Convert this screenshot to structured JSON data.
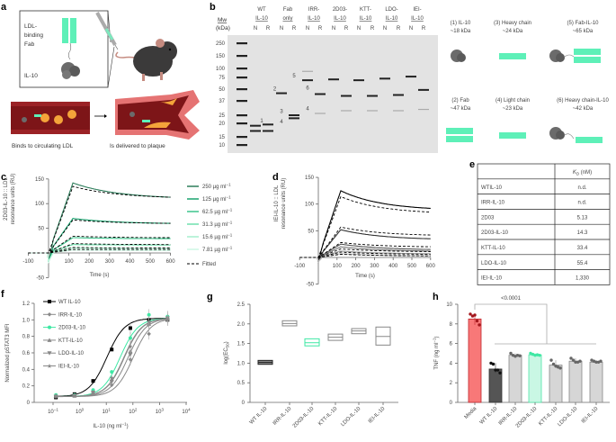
{
  "panel_letters": {
    "a": "a",
    "b": "b",
    "c": "c",
    "d": "d",
    "e": "e",
    "f": "f",
    "g": "g",
    "h": "h"
  },
  "panel_a": {
    "fab_label": [
      "LDL-",
      "binding",
      "Fab"
    ],
    "il10_label": "IL-10",
    "caption_left": "Binds to circulating LDL",
    "caption_right": "Is delivered to plaque",
    "colors": {
      "fab": "#5ef0b8",
      "vessel": "#9b2226",
      "ldl": "#f4a43a",
      "il10": "#6b6b6b"
    }
  },
  "panel_b": {
    "mw_label": "Mw",
    "mw_unit": "(kDa)",
    "ladder": [
      250,
      150,
      100,
      75,
      50,
      37,
      25,
      20,
      15,
      10
    ],
    "lane_groups": [
      {
        "line1": "WT",
        "line2": "IL-10"
      },
      {
        "line1": "Fab",
        "line2": "only"
      },
      {
        "line1": "IRR-",
        "line2": "IL-10"
      },
      {
        "line1": "2D03-",
        "line2": "IL-10"
      },
      {
        "line1": "KTT-",
        "line2": "IL-10"
      },
      {
        "line1": "LDO-",
        "line2": "IL-10"
      },
      {
        "line1": "IEI-",
        "line2": "IL-10"
      }
    ],
    "lane_sub": [
      "N",
      "R"
    ],
    "bands_kda": [
      [
        19,
        17
      ],
      [
        19.5,
        17
      ],
      [
        45
      ],
      [
        25,
        23
      ],
      [
        68,
        90
      ],
      [
        44,
        26
      ],
      [
        70
      ],
      [
        42,
        28
      ],
      [
        68
      ],
      [
        42,
        28
      ],
      [
        72
      ],
      [
        43,
        28
      ],
      [
        77
      ],
      [
        49,
        29
      ]
    ],
    "band_numbers": [
      {
        "text": "1",
        "lane": 1.5,
        "kda": 21.5
      },
      {
        "text": "2",
        "lane": 2.5,
        "kda": 51
      },
      {
        "text": "3",
        "lane": 3,
        "kda": 28
      },
      {
        "text": "4",
        "lane": 3,
        "kda": 21
      },
      {
        "text": "5",
        "lane": 4,
        "kda": 80
      },
      {
        "text": "6",
        "lane": 5,
        "kda": 52
      },
      {
        "text": "4",
        "lane": 5,
        "kda": 30
      }
    ],
    "schematic": [
      {
        "label": "(1) IL-10",
        "mw": "~18 kDa",
        "shape": "il10"
      },
      {
        "label": "(3) Heavy chain",
        "mw": "~24 kDa",
        "shape": "chain"
      },
      {
        "label": "(5) Fab-IL-10",
        "mw": "~65 kDa",
        "shape": "fab-il10"
      },
      {
        "label": "(2) Fab",
        "mw": "~47 kDa",
        "shape": "fab"
      },
      {
        "label": "(4) Light chain",
        "mw": "~23 kDa",
        "shape": "chain"
      },
      {
        "label": "(6) Heavy chain-IL-10",
        "mw": "~42 kDa",
        "shape": "chain-il10"
      }
    ]
  },
  "panel_e": {
    "header": [
      "",
      "K",
      "D",
      " (nM)"
    ],
    "rows": [
      [
        "WTIL-10",
        "n.d."
      ],
      [
        "IRR-IL-10",
        "n.d."
      ],
      [
        "2D03",
        "5.13"
      ],
      [
        "2D03-IL-10",
        "14.3"
      ],
      [
        "KTT-IL-10",
        "33.4"
      ],
      [
        "LDO-IL-10",
        "55.4"
      ],
      [
        "IEI-IL-10",
        "1,330"
      ]
    ]
  },
  "chart_data": [
    {
      "panel": "c",
      "type": "line",
      "ylabel": [
        "2D03-IL-10 :: LDL",
        "resonance units (RU)"
      ],
      "xlabel": "Time (s)",
      "xticks": [
        -100,
        100,
        200,
        300,
        400,
        500,
        600
      ],
      "yticks": [
        150,
        100,
        50,
        -50
      ],
      "xlim": [
        -100,
        600
      ],
      "ylim": [
        -50,
        150
      ],
      "legend_position": "right",
      "series": [
        {
          "name": "250 µg ml",
          "sup": "−1",
          "color": "#2e7d5b",
          "peak": 142,
          "end": 113,
          "fit_peak": 135,
          "fit_end": 113
        },
        {
          "name": "125 µg ml",
          "sup": "−1",
          "color": "#1aa36f",
          "peak": 70,
          "end": 60,
          "fit_peak": 67,
          "fit_end": 60
        },
        {
          "name": "62.5 µg ml",
          "sup": "−1",
          "color": "#3cc48c",
          "peak": 31,
          "end": 29,
          "fit_peak": 34,
          "fit_end": 31
        },
        {
          "name": "31.3 µg ml",
          "sup": "−1",
          "color": "#6fe0ad",
          "peak": 17,
          "end": 16,
          "fit_peak": 19,
          "fit_end": 17
        },
        {
          "name": "15.6 µg ml",
          "sup": "−1",
          "color": "#a6efcd",
          "peak": 10,
          "end": 9,
          "fit_peak": 11,
          "fit_end": 10
        },
        {
          "name": "7.81 µg ml",
          "sup": "−1",
          "color": "#cdf7e4",
          "peak": 6,
          "end": 5,
          "fit_peak": 7,
          "fit_end": 7
        }
      ],
      "fitted_label": "Fitted"
    },
    {
      "panel": "d",
      "type": "line",
      "ylabel": [
        "IEI-IL-10 :: LDL",
        "resonance units (RU)"
      ],
      "xlabel": "Time (s)",
      "xticks": [
        -100,
        100,
        200,
        300,
        400,
        500,
        600
      ],
      "yticks": [
        150,
        100,
        50,
        -50
      ],
      "xlim": [
        -100,
        600
      ],
      "ylim": [
        -50,
        150
      ],
      "series": [
        {
          "color": "#000000",
          "peak": 125,
          "end": 92,
          "fit_peak": 114,
          "fit_end": 85
        },
        {
          "color": "#333333",
          "peak": 52,
          "end": 35,
          "fit_peak": 57,
          "fit_end": 42
        },
        {
          "color": "#555555",
          "peak": 25,
          "end": 15,
          "fit_peak": 28,
          "fit_end": 20
        },
        {
          "color": "#777777",
          "peak": 20,
          "end": 12,
          "fit_peak": 16,
          "fit_end": 11
        },
        {
          "color": "#999999",
          "peak": 12,
          "end": 7,
          "fit_peak": 10,
          "fit_end": 6
        },
        {
          "color": "#bbbbbb",
          "peak": 7,
          "end": 3,
          "fit_peak": 6,
          "fit_end": 3
        }
      ]
    },
    {
      "panel": "f",
      "type": "scatter",
      "ylabel": "Normalized pSTAT3 MFI",
      "xlabel": "IL-10 (ng ml",
      "xlabel_sup": "−1",
      "xlabel_end": ")",
      "xscale": "log",
      "xticks_exp": [
        -1,
        0,
        1,
        2,
        3,
        4
      ],
      "yticks": [
        0,
        0.2,
        0.4,
        0.6,
        0.8,
        1.0,
        1.2
      ],
      "ytick_labels": [
        "0",
        "0.2",
        "0.4",
        "0.6",
        "0.8",
        "1.0",
        "1.2"
      ],
      "xlim": [
        0.05,
        10000
      ],
      "ylim": [
        0,
        1.2
      ],
      "legend_position": "top-left",
      "x": [
        0.128,
        0.64,
        3.2,
        16,
        80,
        400,
        2000
      ],
      "series": [
        {
          "name": "WT IL-10",
          "color": "#000000",
          "marker": "square",
          "values": [
            0.06,
            0.1,
            0.26,
            0.64,
            0.9,
            1.0,
            1.0
          ]
        },
        {
          "name": "IRR-IL-10",
          "color": "#888888",
          "marker": "diamond",
          "values": [
            0.07,
            0.08,
            0.11,
            0.21,
            0.52,
            0.83,
            1.0
          ]
        },
        {
          "name": "2D03-IL-10",
          "color": "#3ee8a4",
          "marker": "circle",
          "values": [
            0.09,
            0.09,
            0.15,
            0.37,
            0.78,
            1.06,
            1.04
          ]
        },
        {
          "name": "KTT-IL-10",
          "color": "#888888",
          "marker": "triangle",
          "values": [
            0.08,
            0.08,
            0.12,
            0.28,
            0.62,
            0.95,
            1.03
          ]
        },
        {
          "name": "LDO-IL-10",
          "color": "#888888",
          "marker": "triangle-down",
          "values": [
            0.07,
            0.08,
            0.12,
            0.25,
            0.58,
            0.94,
            1.02
          ]
        },
        {
          "name": "IEI-IL-10",
          "color": "#888888",
          "marker": "star",
          "values": [
            0.08,
            0.08,
            0.12,
            0.3,
            0.68,
            0.98,
            1.0
          ]
        }
      ]
    },
    {
      "panel": "g",
      "type": "box",
      "ylabel": "log(EC",
      "ylabel_sub": "50",
      "ylabel_end": ")",
      "yticks": [
        0,
        0.5,
        1.0,
        1.5,
        2.0,
        2.5
      ],
      "ytick_labels": [
        "0",
        "0.5",
        "1.0",
        "1.5",
        "2.0",
        "2.5"
      ],
      "ylim": [
        0,
        2.5
      ],
      "categories": [
        "WT IL-10",
        "IRR-IL-10",
        "2D03-IL-10",
        "KTT-IL-10",
        "LDO-IL-10",
        "IEI-IL-10"
      ],
      "low": [
        0.97,
        1.95,
        1.44,
        1.58,
        1.75,
        1.46
      ],
      "median": [
        1.02,
        2.01,
        1.52,
        1.66,
        1.82,
        1.68
      ],
      "high": [
        1.07,
        2.08,
        1.62,
        1.74,
        1.88,
        1.92
      ],
      "colors": [
        "#222222",
        "#888888",
        "#3ee8a4",
        "#888888",
        "#888888",
        "#888888"
      ]
    },
    {
      "panel": "h",
      "type": "bar",
      "ylabel": "TNF (ng ml",
      "ylabel_sup": "−1",
      "ylabel_end": ")",
      "yticks": [
        0,
        2,
        4,
        6,
        8,
        10
      ],
      "ylim": [
        0,
        10
      ],
      "categories": [
        "Media",
        "WT IL-10",
        "IRR-IL-10",
        "2D03-IL-10",
        "KTT-IL-10",
        "LDO-IL-10",
        "IEI-IL-10"
      ],
      "values": [
        8.5,
        3.4,
        4.8,
        4.85,
        3.8,
        4.2,
        4.1
      ],
      "points": [
        [
          9.0,
          8.8,
          8.9,
          8.3,
          7.9
        ],
        [
          4.0,
          3.9,
          3.3,
          3.3,
          3.0
        ],
        [
          5.0,
          4.8,
          4.7,
          4.8,
          4.75
        ],
        [
          5.0,
          4.9,
          4.8,
          4.85,
          4.8
        ],
        [
          4.3,
          3.9,
          3.7,
          3.6,
          3.5
        ],
        [
          4.5,
          4.3,
          4.1,
          4.1,
          4.2
        ],
        [
          4.3,
          4.2,
          4.1,
          4.1,
          4.2
        ]
      ],
      "fill": [
        "#f87878",
        "#555555",
        "#d6d6d6",
        "#c9f7e4",
        "#d6d6d6",
        "#d6d6d6",
        "#d6d6d6"
      ],
      "stroke": [
        "#c0262d",
        "#333333",
        "#888888",
        "#4ee6a8",
        "#888888",
        "#888888",
        "#888888"
      ],
      "dot": [
        "#a3161c",
        "#111111",
        "#666666",
        "#3ee8a4",
        "#666666",
        "#666666",
        "#666666"
      ],
      "significance": "<0.0001"
    }
  ]
}
